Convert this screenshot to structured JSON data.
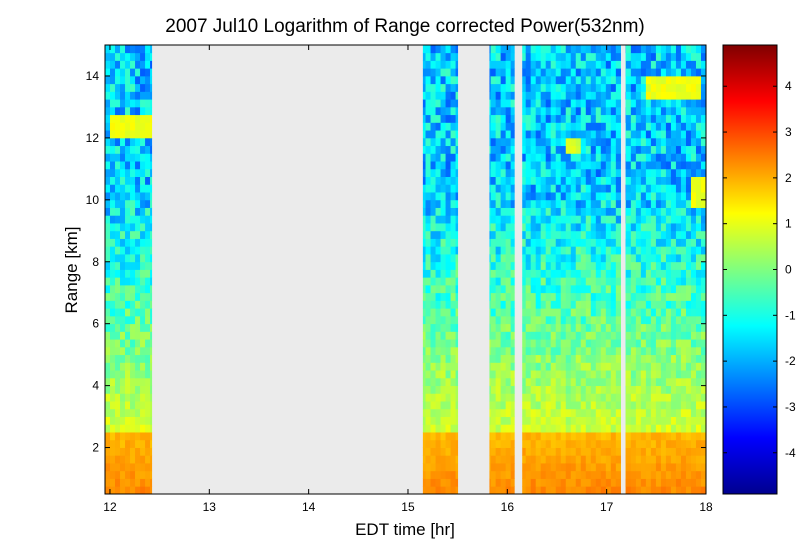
{
  "chart_data": {
    "type": "heatmap",
    "title": "2007 Jul10  Logarithm of Range corrected Power(532nm)",
    "xlabel": "EDT time [hr]",
    "ylabel": "Range [km]",
    "xlim": [
      11.95,
      18.0
    ],
    "ylim": [
      0.5,
      15.0
    ],
    "x_ticks": [
      {
        "value": 12,
        "label": "12"
      },
      {
        "value": 13,
        "label": "13"
      },
      {
        "value": 14,
        "label": "14"
      },
      {
        "value": 15,
        "label": "15"
      },
      {
        "value": 16,
        "label": "16"
      },
      {
        "value": 17,
        "label": "17"
      },
      {
        "value": 18,
        "label": "18"
      }
    ],
    "y_ticks": [
      {
        "value": 2,
        "label": "2"
      },
      {
        "value": 4,
        "label": "4"
      },
      {
        "value": 6,
        "label": "6"
      },
      {
        "value": 8,
        "label": "8"
      },
      {
        "value": 10,
        "label": "10"
      },
      {
        "value": 12,
        "label": "12"
      },
      {
        "value": 14,
        "label": "14"
      }
    ],
    "colorbar": {
      "range": [
        -4.9,
        4.9
      ],
      "colormap": "jet",
      "ticks": [
        {
          "value": 4,
          "label": "4"
        },
        {
          "value": 3,
          "label": "3"
        },
        {
          "value": 2,
          "label": "2"
        },
        {
          "value": 1,
          "label": "1"
        },
        {
          "value": 0,
          "label": "0"
        },
        {
          "value": -1,
          "label": "-1"
        },
        {
          "value": -2,
          "label": "-2"
        },
        {
          "value": -3,
          "label": "-3"
        },
        {
          "value": -4,
          "label": "-4"
        }
      ]
    },
    "data_segments": [
      {
        "start": 11.95,
        "end": 12.42
      },
      {
        "start": 15.15,
        "end": 15.5
      },
      {
        "start": 15.82,
        "end": 16.07
      },
      {
        "start": 16.15,
        "end": 17.14
      },
      {
        "start": 17.19,
        "end": 18.0
      }
    ],
    "no_data_color": "#ebebeb",
    "boundary_layer_top_km": 2.5
  }
}
